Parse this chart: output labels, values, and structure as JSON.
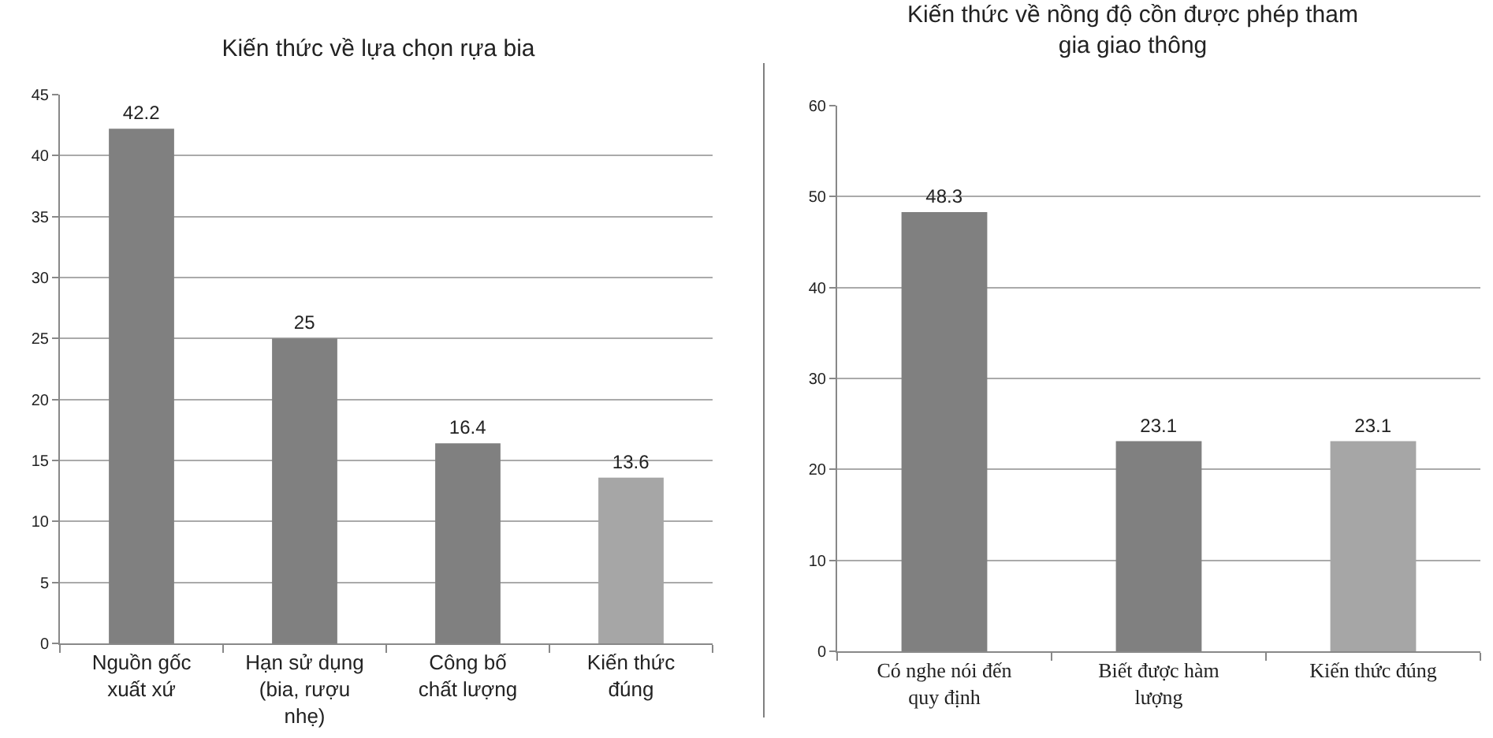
{
  "chart_data": [
    {
      "type": "bar",
      "title": "Kiến thức về lựa chọn rựa bia",
      "categories": [
        "Nguồn gốc xuất xứ",
        "Hạn sử dụng (bia, rượu nhẹ)",
        "Công bố chất lượng",
        "Kiến thức đúng"
      ],
      "values": [
        42.2,
        25,
        16.4,
        13.6
      ],
      "colors": [
        "#808080",
        "#808080",
        "#808080",
        "#a6a6a6"
      ],
      "ylim": [
        0,
        45
      ],
      "yticks": [
        0,
        5,
        10,
        15,
        20,
        25,
        30,
        35,
        40,
        45
      ],
      "grid": "y",
      "data_labels": true
    },
    {
      "type": "bar",
      "title": "Kiến thức về nồng độ cồn được phép tham gia giao thông",
      "categories": [
        "Có nghe nói đến quy định",
        "Biết được hàm lượng",
        "Kiến thức đúng"
      ],
      "values": [
        48.3,
        23.1,
        23.1
      ],
      "colors": [
        "#808080",
        "#808080",
        "#a6a6a6"
      ],
      "ylim": [
        0,
        60
      ],
      "yticks": [
        0,
        10,
        20,
        30,
        40,
        50,
        60
      ],
      "grid": "y",
      "data_labels": true
    }
  ]
}
